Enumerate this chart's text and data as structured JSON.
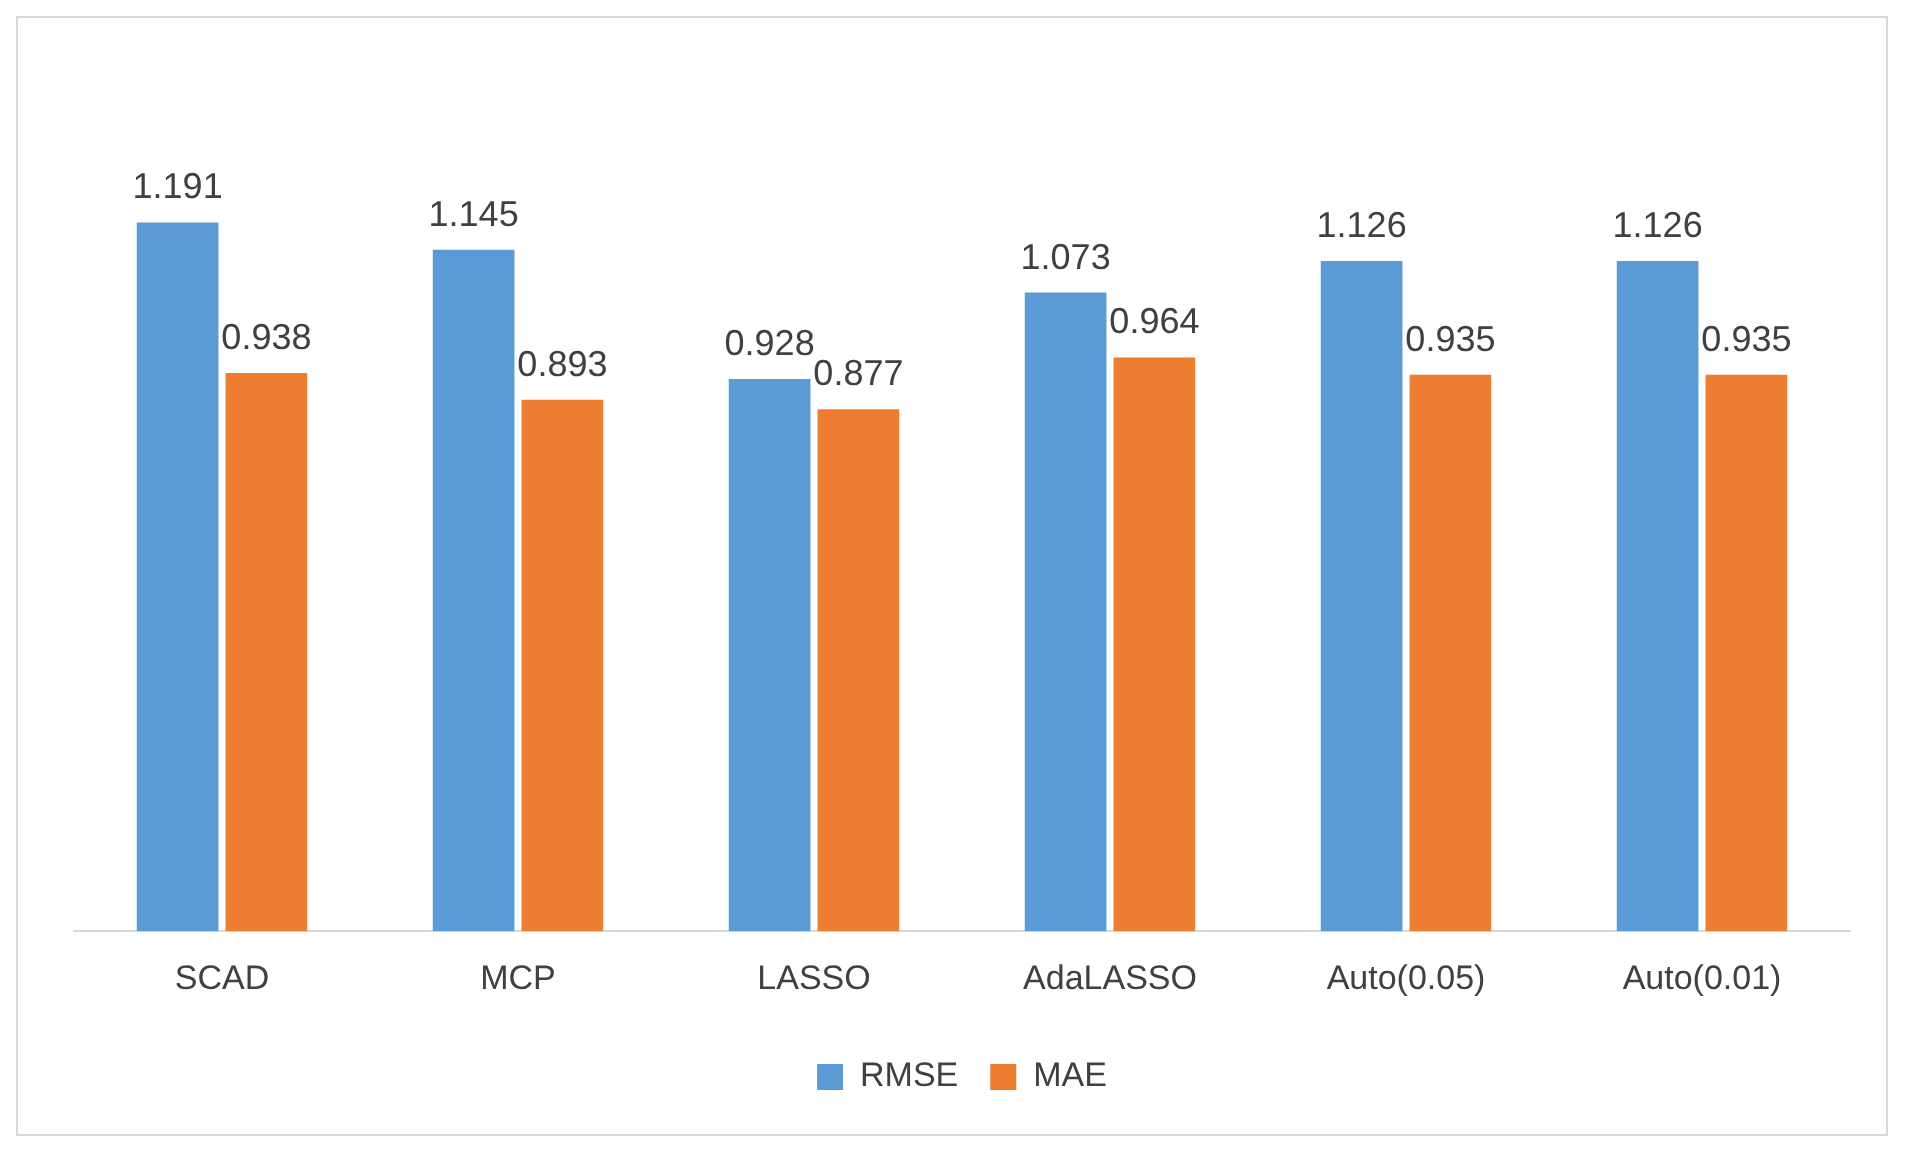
{
  "chart_data": {
    "type": "bar",
    "categories": [
      "SCAD",
      "MCP",
      "LASSO",
      "AdaLASSO",
      "Auto(0.05)",
      "Auto(0.01)"
    ],
    "series": [
      {
        "name": "RMSE",
        "color": "#5b9bd5",
        "values": [
          1.191,
          1.145,
          0.928,
          1.073,
          1.126,
          1.126
        ]
      },
      {
        "name": "MAE",
        "color": "#ed7d31",
        "values": [
          0.938,
          0.893,
          0.877,
          0.964,
          0.935,
          0.935
        ]
      }
    ],
    "data_labels": true,
    "legend": "bottom",
    "grid": false,
    "tick_labels": "x"
  }
}
